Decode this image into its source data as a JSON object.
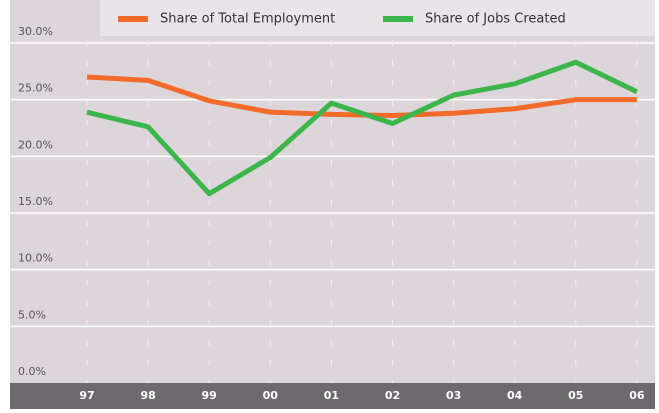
{
  "chart_data": {
    "type": "line",
    "categories": [
      "97",
      "98",
      "99",
      "00",
      "01",
      "02",
      "03",
      "04",
      "05",
      "06"
    ],
    "series": [
      {
        "name": "Share of Total Employment",
        "color": "#f26b2a",
        "values": [
          27.0,
          26.7,
          24.9,
          23.9,
          23.7,
          23.6,
          23.8,
          24.2,
          25.0,
          25.0
        ]
      },
      {
        "name": "Share of Jobs Created",
        "color": "#3cb54a",
        "values": [
          23.9,
          22.6,
          16.7,
          19.9,
          24.7,
          22.9,
          25.4,
          26.4,
          28.3,
          25.7
        ]
      }
    ],
    "ylim": [
      0,
      30
    ],
    "yticks": [
      {
        "value": 0,
        "label": "0.0%"
      },
      {
        "value": 5,
        "label": "5.0%"
      },
      {
        "value": 10,
        "label": "10.0%"
      },
      {
        "value": 15,
        "label": "15.0%"
      },
      {
        "value": 20,
        "label": "20.0%"
      },
      {
        "value": 25,
        "label": "25.0%"
      },
      {
        "value": 30,
        "label": "30.0%"
      }
    ],
    "grid": true,
    "legend": "top"
  }
}
